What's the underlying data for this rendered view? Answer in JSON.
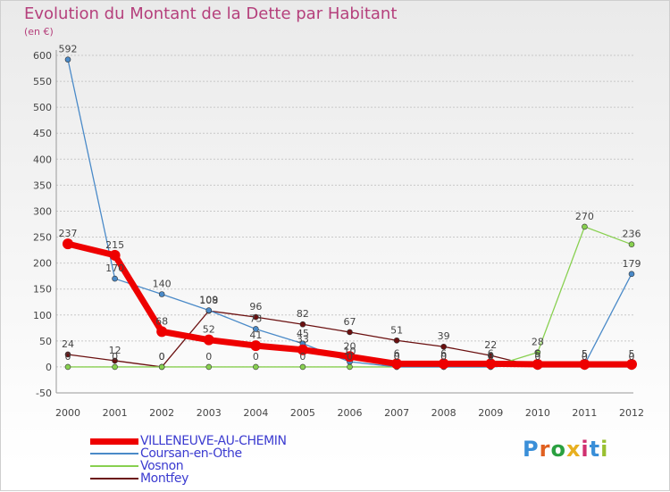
{
  "chart_data": {
    "type": "line",
    "title": "Evolution du Montant de la Dette par Habitant",
    "ylabel": "(en €)",
    "xlabel": "",
    "categories": [
      "2000",
      "2001",
      "2002",
      "2003",
      "2004",
      "2005",
      "2006",
      "2007",
      "2008",
      "2009",
      "2010",
      "2011",
      "2012"
    ],
    "yticks": [
      "600",
      "550",
      "500",
      "450",
      "400",
      "350",
      "300",
      "250",
      "200",
      "150",
      "100",
      "50",
      "0",
      "-50"
    ],
    "ylim": [
      -50,
      600
    ],
    "grid": true,
    "legend_position": "bottom-left",
    "series": [
      {
        "name": "VILLENEUVE-AU-CHEMIN",
        "color": "#ee0000",
        "values": [
          237,
          215,
          68,
          52,
          41,
          33,
          20,
          6,
          6,
          6,
          5,
          5,
          5
        ]
      },
      {
        "name": "Coursan-en-Othe",
        "color": "#4a8ac8",
        "values": [
          592,
          170,
          140,
          109,
          73,
          45,
          10,
          0,
          0,
          0,
          5,
          5,
          179
        ]
      },
      {
        "name": "Vosnon",
        "color": "#88d050",
        "values": [
          0,
          0,
          0,
          0,
          0,
          0,
          0,
          0,
          0,
          0,
          28,
          270,
          236
        ]
      },
      {
        "name": "Montfey",
        "color": "#6b1010",
        "values": [
          24,
          12,
          0,
          108,
          96,
          82,
          67,
          51,
          39,
          22,
          0,
          0,
          0
        ]
      }
    ]
  },
  "logo_text": "Proxiti"
}
